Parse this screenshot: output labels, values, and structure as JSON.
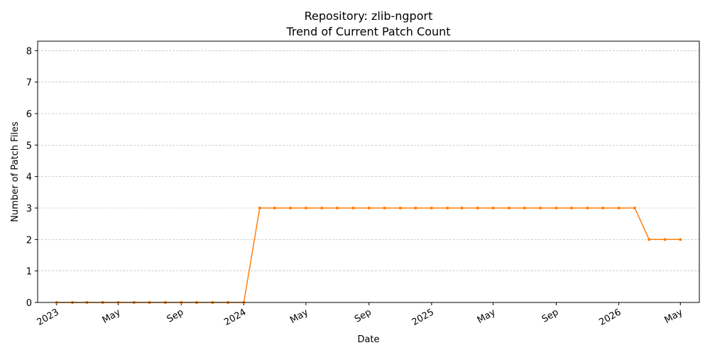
{
  "chart_data": {
    "type": "line",
    "title": "Repository: zlib-ngport",
    "subtitle": "Trend of Current Patch Count",
    "xlabel": "Date",
    "ylabel": "Number of Patch Files",
    "ylim": [
      0,
      8.3
    ],
    "yticks": [
      0,
      1,
      2,
      3,
      4,
      5,
      6,
      7,
      8
    ],
    "xlim": [
      "2022-11-25",
      "2026-06-07"
    ],
    "xticks": [
      {
        "date": "2023-01-01",
        "label": "2023"
      },
      {
        "date": "2023-05-01",
        "label": "May"
      },
      {
        "date": "2023-09-01",
        "label": "Sep"
      },
      {
        "date": "2024-01-01",
        "label": "2024"
      },
      {
        "date": "2024-05-01",
        "label": "May"
      },
      {
        "date": "2024-09-01",
        "label": "Sep"
      },
      {
        "date": "2025-01-01",
        "label": "2025"
      },
      {
        "date": "2025-05-01",
        "label": "May"
      },
      {
        "date": "2025-09-01",
        "label": "Sep"
      },
      {
        "date": "2026-01-01",
        "label": "2026"
      },
      {
        "date": "2026-05-01",
        "label": "May"
      }
    ],
    "grid": "y-dashed",
    "line_color": "#ff7f0e",
    "series": [
      {
        "x": [
          "2023-01-01",
          "2023-02-01",
          "2023-03-01",
          "2023-04-01",
          "2023-05-01",
          "2023-06-01",
          "2023-07-01",
          "2023-08-01",
          "2023-09-01",
          "2023-10-01",
          "2023-11-01",
          "2023-12-01",
          "2024-01-01",
          "2024-02-01",
          "2024-03-01",
          "2024-04-01",
          "2024-05-01",
          "2024-06-01",
          "2024-07-01",
          "2024-08-01",
          "2024-09-01",
          "2024-10-01",
          "2024-11-01",
          "2024-12-01",
          "2025-01-01",
          "2025-02-01",
          "2025-03-01",
          "2025-04-01",
          "2025-05-01",
          "2025-06-01",
          "2025-07-01",
          "2025-08-01",
          "2025-09-01",
          "2025-10-01",
          "2025-11-01",
          "2025-12-01",
          "2026-01-01",
          "2026-02-01",
          "2026-03-01",
          "2026-04-01",
          "2026-05-01"
        ],
        "values": [
          0,
          0,
          0,
          0,
          0,
          0,
          0,
          0,
          0,
          0,
          0,
          0,
          0,
          3,
          3,
          3,
          3,
          3,
          3,
          3,
          3,
          3,
          3,
          3,
          3,
          3,
          3,
          3,
          3,
          3,
          3,
          3,
          3,
          3,
          3,
          3,
          3,
          3,
          2,
          2,
          2
        ]
      }
    ]
  }
}
